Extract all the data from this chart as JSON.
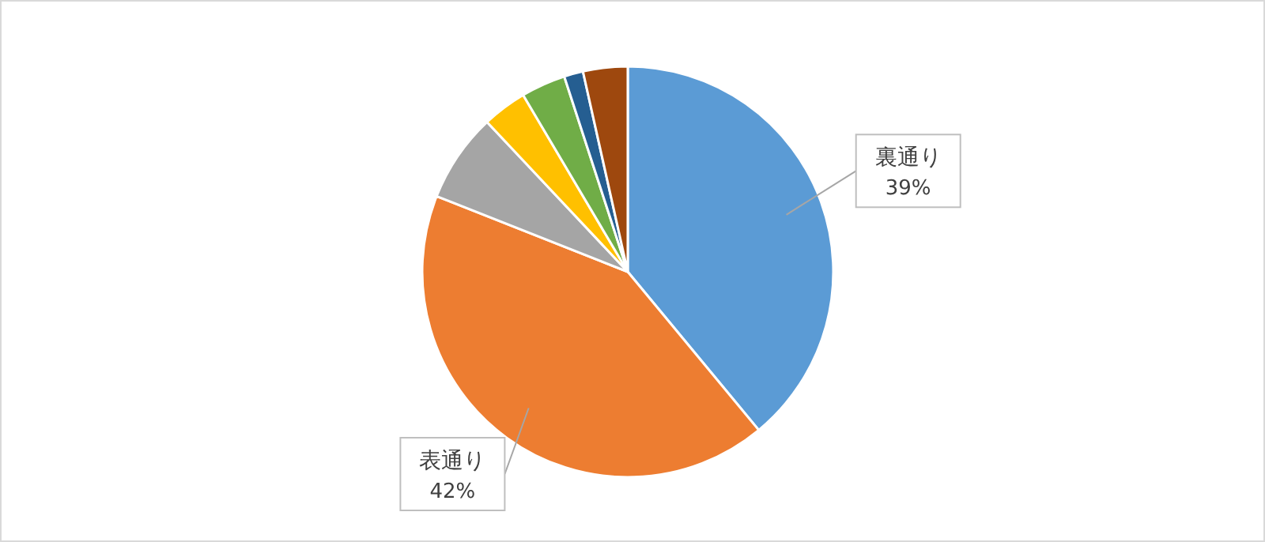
{
  "chart_data": {
    "type": "pie",
    "categories": [
      "裏通り",
      "表通り",
      null,
      null,
      null,
      null,
      null
    ],
    "values": [
      39,
      42,
      7,
      3.5,
      3.5,
      1.5,
      3.5
    ],
    "value_labels": [
      "39%",
      "42%",
      null,
      null,
      null,
      null,
      null
    ],
    "colors": [
      "#5b9bd5",
      "#ed7d31",
      "#a5a5a5",
      "#ffc000",
      "#70ad47",
      "#255e91",
      "#9e480e"
    ]
  }
}
